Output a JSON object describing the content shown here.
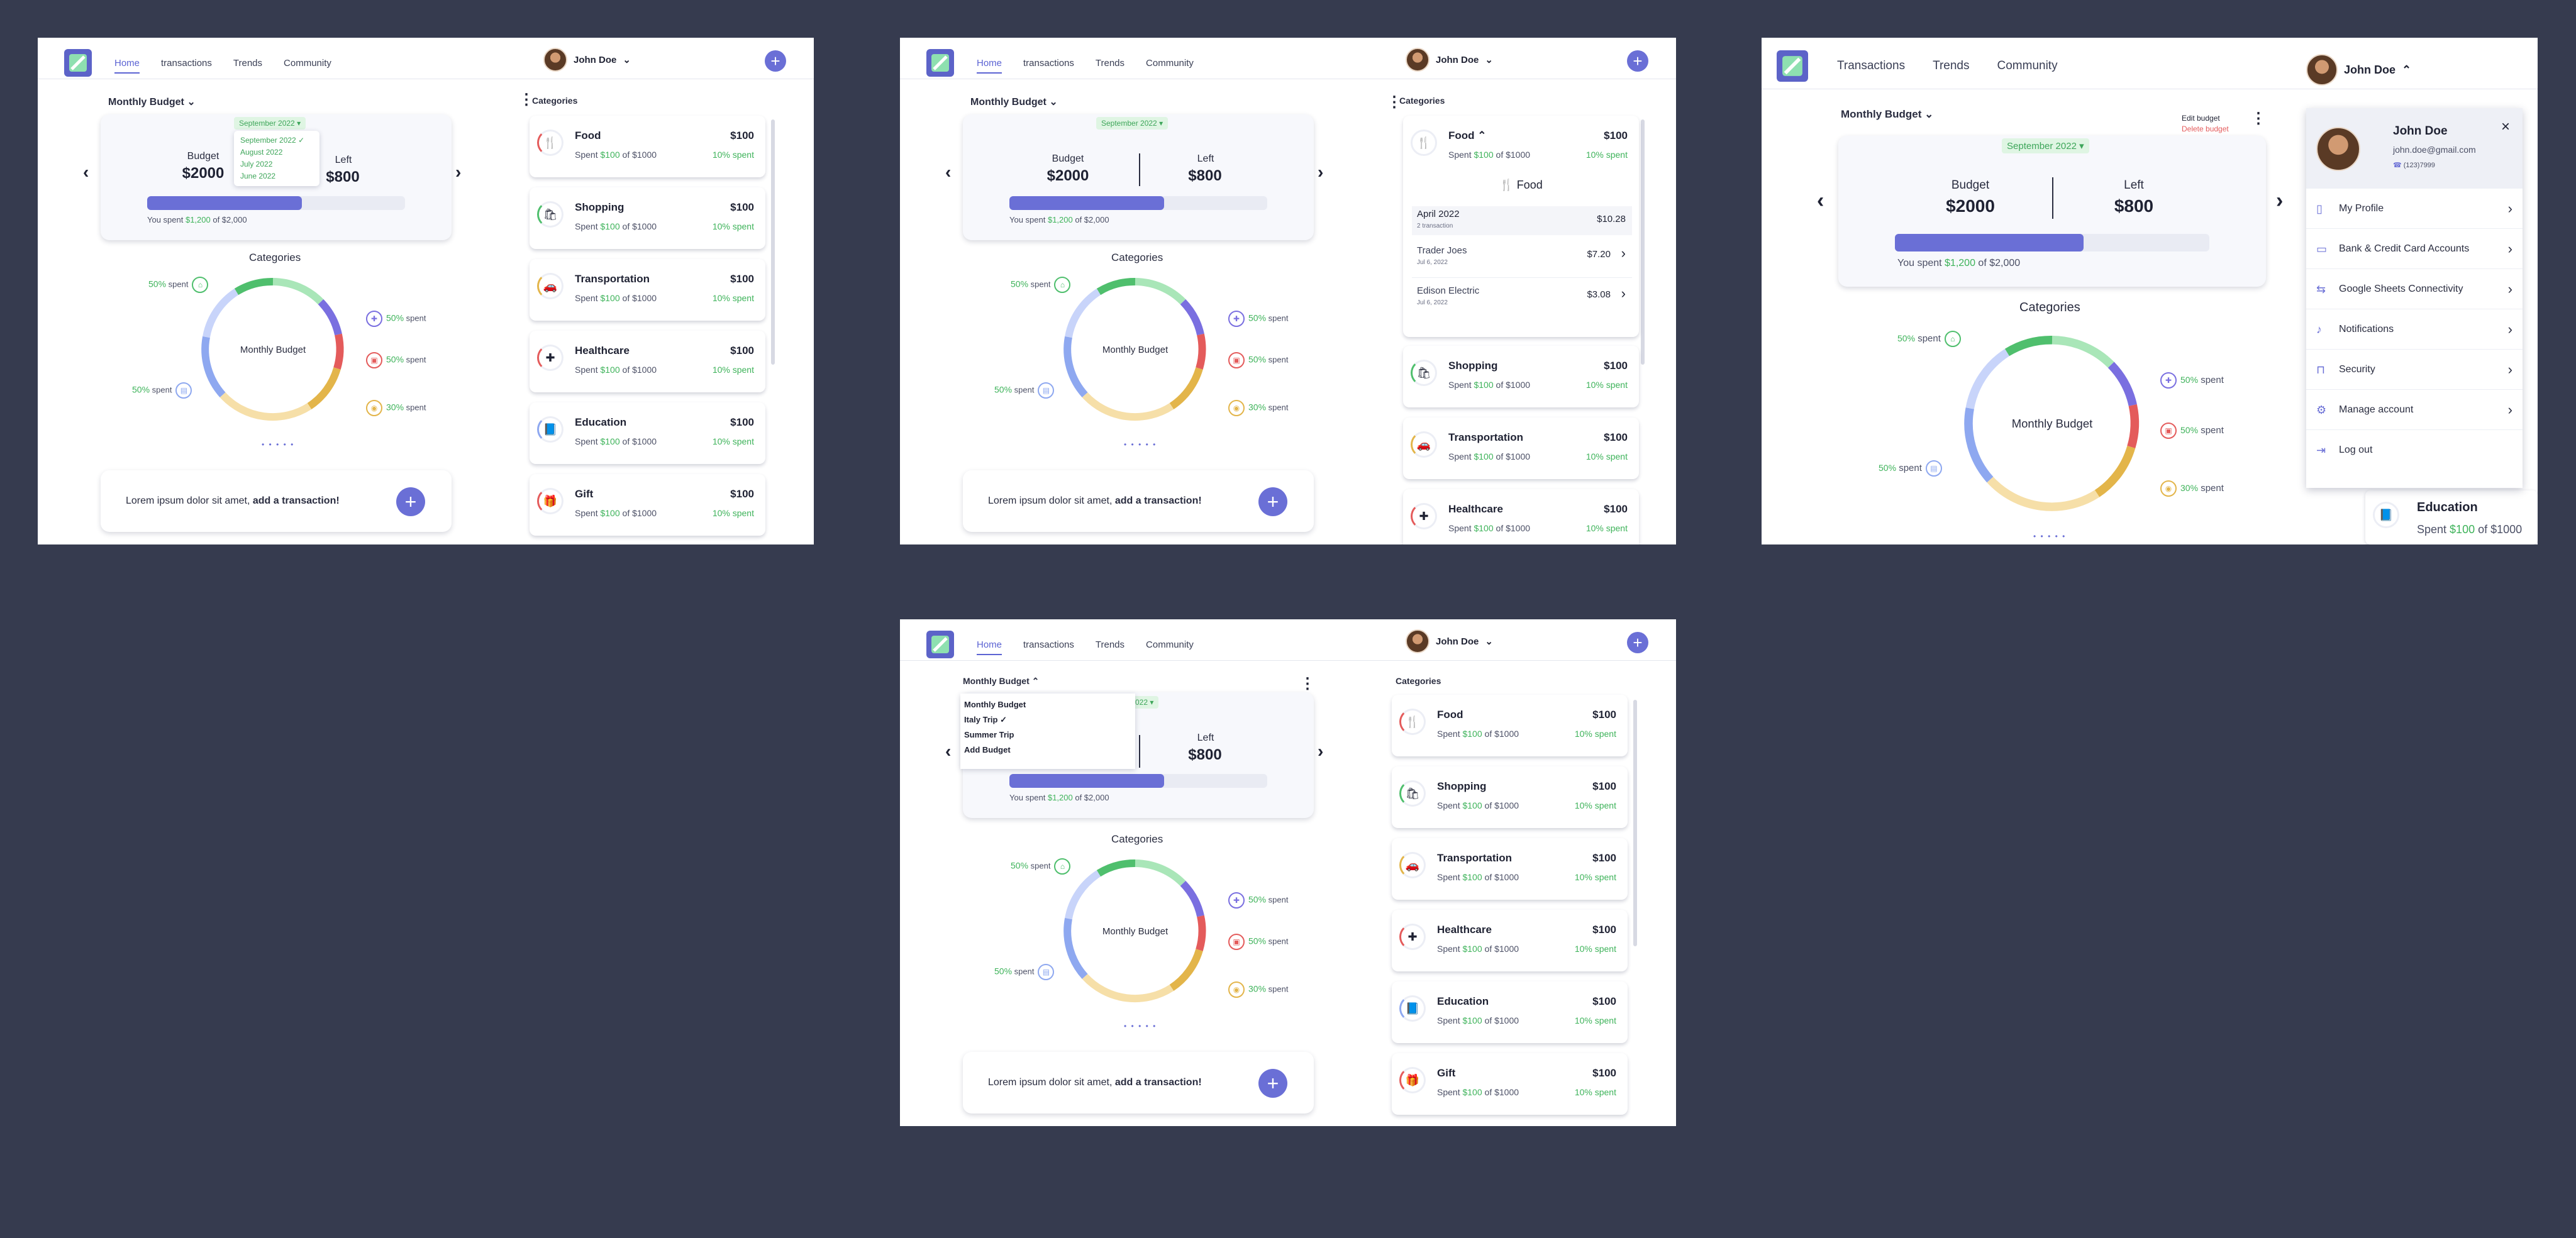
{
  "nav": {
    "links": [
      "Home",
      "transactions",
      "Trends",
      "Community"
    ],
    "links_wide": [
      "Transactions",
      "Trends",
      "Community"
    ],
    "user_name": "John Doe",
    "plus": "+",
    "chevron": "⌄"
  },
  "budget": {
    "selector": "Monthly Budget",
    "month": "September 2022",
    "month_options": [
      "September 2022",
      "August 2022",
      "July 2022",
      "June 2022"
    ],
    "budget_label": "Budget",
    "budget_value": "$2000",
    "left_label": "Left",
    "left_value": "$800",
    "spent_prefix": "You spent ",
    "spent_value": "$1,200",
    "spent_suffix": " of $2,000",
    "progress": 0.6,
    "month_short": "r 2022",
    "budget_options": [
      "Monthly Budget",
      "Italy Trip",
      "Summer Trip",
      "Add Budget"
    ],
    "edit_options": [
      "Edit budget",
      "Delete budget"
    ]
  },
  "categories_chart": {
    "title": "Categories",
    "center": "Monthly Budget",
    "pages": "• • • • •",
    "legend": [
      {
        "pct": "50%",
        "label": "spent"
      },
      {
        "pct": "50%",
        "label": "spent"
      },
      {
        "pct": "50%",
        "label": "spent"
      },
      {
        "pct": "50%",
        "label": "spent"
      },
      {
        "pct": "30%",
        "label": "spent"
      }
    ]
  },
  "cta": {
    "text": "Lorem ipsum dolor sit amet, ",
    "bold": "add a transaction!",
    "plus": "+"
  },
  "categories_panel": {
    "title": "Categories",
    "items": [
      {
        "name": "Food",
        "amount": "$100",
        "spent": "$100",
        "of": " of $1000",
        "pct": "10% spent",
        "icon": "🍴"
      },
      {
        "name": "Shopping",
        "amount": "$100",
        "spent": "$100",
        "of": " of $1000",
        "pct": "10% spent",
        "icon": "🛍"
      },
      {
        "name": "Transportation",
        "amount": "$100",
        "spent": "$100",
        "of": " of $1000",
        "pct": "10% spent",
        "icon": "🚗"
      },
      {
        "name": "Healthcare",
        "amount": "$100",
        "spent": "$100",
        "of": " of $1000",
        "pct": "10% spent",
        "icon": "✚"
      },
      {
        "name": "Education",
        "amount": "$100",
        "spent": "$100",
        "of": " of $1000",
        "pct": "10% spent",
        "icon": "📘"
      },
      {
        "name": "Gift",
        "amount": "$100",
        "spent": "$100",
        "of": " of $1000",
        "pct": "10% spent",
        "icon": "🎁"
      }
    ],
    "spent_word": "Spent "
  },
  "food_detail": {
    "title": "Food",
    "month": "April 2022",
    "count": "2 transaction",
    "total": "$10.28",
    "transactions": [
      {
        "name": "Trader Joes",
        "date": "Jul 6, 2022",
        "amount": "$7.20"
      },
      {
        "name": "Edison Electric",
        "date": "Jul 6, 2022",
        "amount": "$3.08"
      }
    ]
  },
  "profile": {
    "name": "John Doe",
    "email": "john.doe@gmail.com",
    "phone": "(123)7999",
    "items": [
      "My Profile",
      "Bank & Credit Card Accounts",
      "Google Sheets Connectivity",
      "Notifications",
      "Security",
      "Manage account",
      "Log out"
    ]
  },
  "colors": {
    "accent": "#6a6fd6",
    "green": "#3eb35a",
    "background": "#363b4f"
  },
  "icons": {
    "food": "fork-knife-icon",
    "shopping": "bag-icon",
    "transportation": "car-icon",
    "healthcare": "health-icon",
    "education": "book-icon",
    "gift": "gift-icon"
  }
}
